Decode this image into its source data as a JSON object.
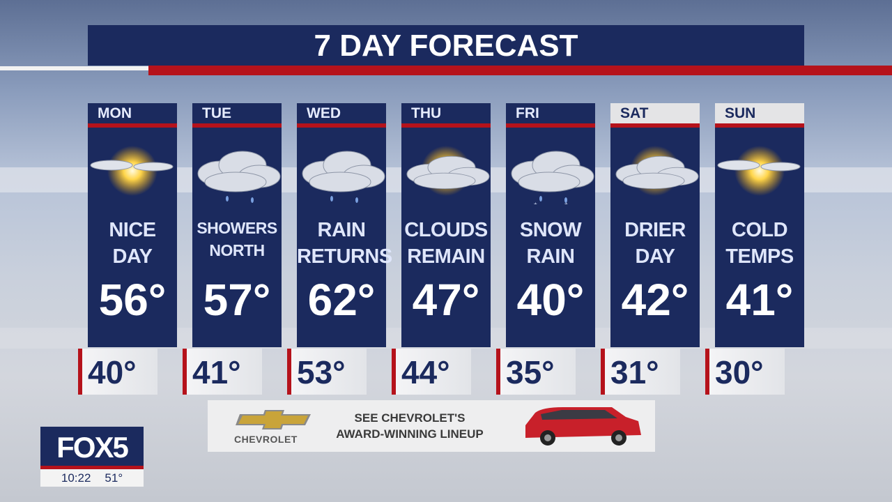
{
  "title": "7 DAY FORECAST",
  "days": [
    {
      "day": "MON",
      "icon": "sun-cloud-icon",
      "desc": [
        "NICE",
        "DAY"
      ],
      "high": "56°",
      "low": "40°",
      "weekend": false
    },
    {
      "day": "TUE",
      "icon": "cloud-showers-icon",
      "desc": [
        "SHOWERS",
        "NORTH"
      ],
      "high": "57°",
      "low": "41°",
      "weekend": false
    },
    {
      "day": "WED",
      "icon": "cloud-rain-icon",
      "desc": [
        "RAIN",
        "RETURNS"
      ],
      "high": "62°",
      "low": "53°",
      "weekend": false
    },
    {
      "day": "THU",
      "icon": "cloud-sun-icon",
      "desc": [
        "CLOUDS",
        "REMAIN"
      ],
      "high": "47°",
      "low": "44°",
      "weekend": false
    },
    {
      "day": "FRI",
      "icon": "cloud-snow-rain-icon",
      "desc": [
        "SNOW",
        "RAIN"
      ],
      "high": "40°",
      "low": "35°",
      "weekend": false
    },
    {
      "day": "SAT",
      "icon": "cloud-sun-icon",
      "desc": [
        "DRIER",
        "DAY"
      ],
      "high": "42°",
      "low": "31°",
      "weekend": true
    },
    {
      "day": "SUN",
      "icon": "sun-cloud-icon",
      "desc": [
        "COLD",
        "TEMPS"
      ],
      "high": "41°",
      "low": "30°",
      "weekend": true
    }
  ],
  "ad": {
    "brand": "CHEVROLET",
    "text": [
      "SEE CHEVROLET'S",
      "AWARD-WINNING LINEUP"
    ]
  },
  "station": {
    "logo": "FOX5",
    "time": "10:22",
    "temp": "51°"
  },
  "colors": {
    "navy": "#1b2a5e",
    "red": "#b5121b"
  }
}
